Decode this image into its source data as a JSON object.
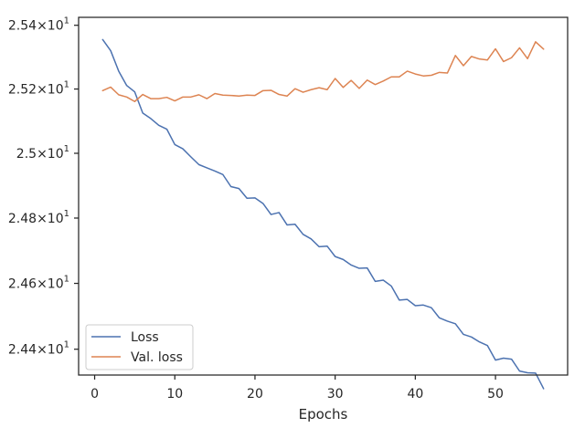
{
  "chart_data": {
    "type": "line",
    "title": "",
    "xlabel": "Epochs",
    "ylabel": "",
    "yscale": "log",
    "xlim": [
      -2,
      59
    ],
    "ylim": [
      24.322,
      25.425
    ],
    "grid": false,
    "legend_position": "lower-left",
    "x_ticks": [
      0,
      10,
      20,
      30,
      40,
      50
    ],
    "x_tick_labels": [
      "0",
      "10",
      "20",
      "30",
      "40",
      "50"
    ],
    "y_ticks": [
      {
        "value": 25.4,
        "mantissa": "2.54",
        "exponent": "1"
      },
      {
        "value": 25.2,
        "mantissa": "2.52",
        "exponent": "1"
      },
      {
        "value": 25.0,
        "mantissa": "2.5",
        "exponent": "1"
      },
      {
        "value": 24.8,
        "mantissa": "2.48",
        "exponent": "1"
      },
      {
        "value": 24.6,
        "mantissa": "2.46",
        "exponent": "1"
      },
      {
        "value": 24.4,
        "mantissa": "2.44",
        "exponent": "1"
      }
    ],
    "y_tick_times": "×",
    "y_tick_base": "10",
    "x": [
      1,
      2,
      3,
      4,
      5,
      6,
      7,
      8,
      9,
      10,
      11,
      12,
      13,
      14,
      15,
      16,
      17,
      18,
      19,
      20,
      21,
      22,
      23,
      24,
      25,
      26,
      27,
      28,
      29,
      30,
      31,
      32,
      33,
      34,
      35,
      36,
      37,
      38,
      39,
      40,
      41,
      42,
      43,
      44,
      45,
      46,
      47,
      48,
      49,
      50,
      51,
      52,
      53,
      54,
      55,
      56
    ],
    "series": [
      {
        "name": "Loss",
        "color": "#4c72b0",
        "values": [
          25.355,
          25.32,
          25.256,
          25.211,
          25.191,
          25.125,
          25.108,
          25.087,
          25.075,
          25.027,
          25.014,
          24.989,
          24.965,
          24.955,
          24.945,
          24.934,
          24.897,
          24.891,
          24.861,
          24.862,
          24.845,
          24.811,
          24.817,
          24.779,
          24.781,
          24.75,
          24.736,
          24.712,
          24.714,
          24.682,
          24.673,
          24.656,
          24.646,
          24.647,
          24.606,
          24.61,
          24.592,
          24.549,
          24.551,
          24.532,
          24.534,
          24.526,
          24.495,
          24.485,
          24.477,
          24.445,
          24.437,
          24.422,
          24.411,
          24.367,
          24.373,
          24.37,
          24.334,
          24.329,
          24.328,
          24.281
        ]
      },
      {
        "name": "Val. loss",
        "color": "#dd8452",
        "values": [
          25.195,
          25.206,
          25.182,
          25.175,
          25.161,
          25.183,
          25.17,
          25.17,
          25.174,
          25.163,
          25.175,
          25.175,
          25.182,
          25.17,
          25.186,
          25.181,
          25.18,
          25.178,
          25.181,
          25.18,
          25.195,
          25.196,
          25.183,
          25.178,
          25.201,
          25.19,
          25.198,
          25.204,
          25.198,
          25.233,
          25.205,
          25.227,
          25.202,
          25.228,
          25.214,
          25.225,
          25.238,
          25.238,
          25.256,
          25.247,
          25.241,
          25.243,
          25.252,
          25.25,
          25.305,
          25.273,
          25.302,
          25.294,
          25.291,
          25.326,
          25.286,
          25.298,
          25.329,
          25.295,
          25.348,
          25.325
        ]
      }
    ]
  }
}
